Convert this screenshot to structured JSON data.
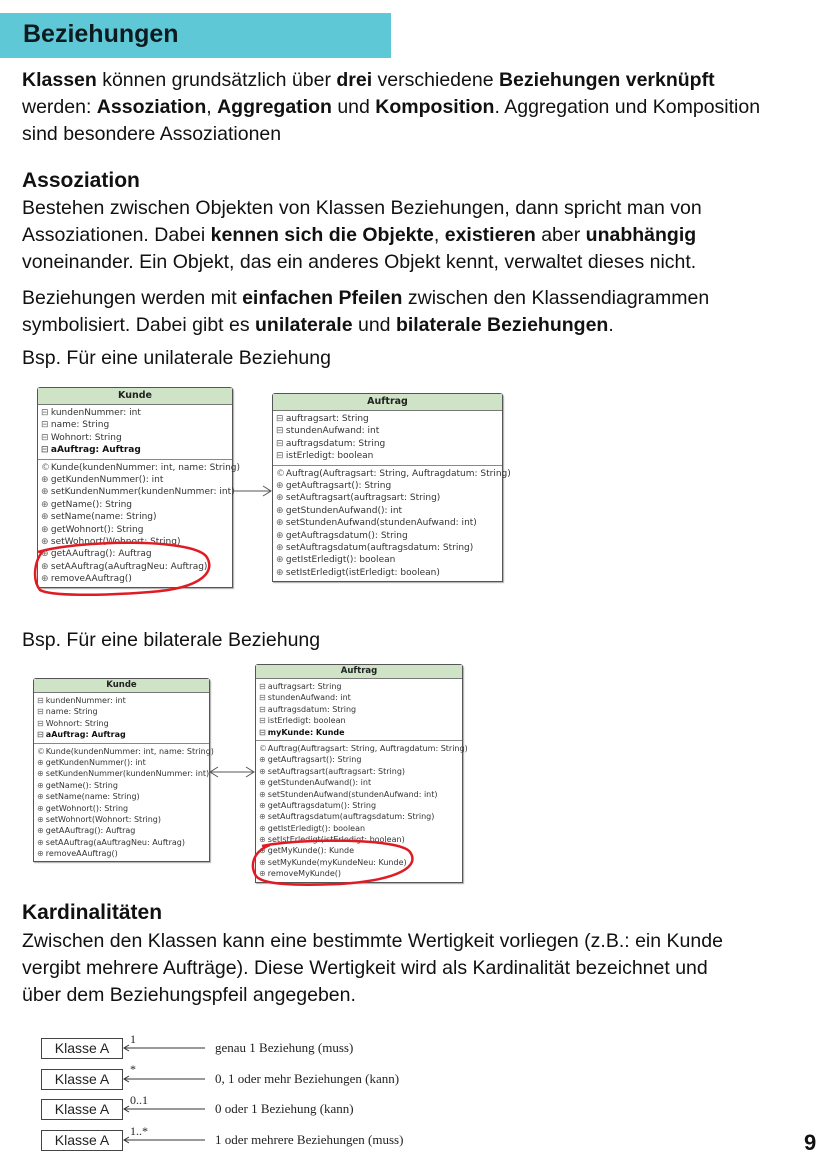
{
  "title": "Beziehungen",
  "intro": [
    [
      {
        "t": "Klassen",
        "b": true
      },
      {
        "t": " können grundsätzlich über "
      },
      {
        "t": "drei",
        "b": true
      },
      {
        "t": " verschiedene "
      },
      {
        "t": "Beziehungen verknüpft",
        "b": true
      }
    ],
    [
      {
        "t": "werden: "
      },
      {
        "t": "Assoziation",
        "b": true
      },
      {
        "t": ", "
      },
      {
        "t": "Aggregation",
        "b": true
      },
      {
        "t": " und "
      },
      {
        "t": "Komposition",
        "b": true
      },
      {
        "t": ". Aggregation und Komposition"
      }
    ],
    [
      {
        "t": "sind besondere Assoziationen"
      }
    ]
  ],
  "assoziation": {
    "heading": "Assoziation",
    "para1": [
      [
        {
          "t": "Bestehen zwischen Objekten von Klassen Beziehungen, dann spricht man von"
        }
      ],
      [
        {
          "t": "Assoziationen. Dabei "
        },
        {
          "t": "kennen sich die Objekte",
          "b": true
        },
        {
          "t": ", "
        },
        {
          "t": "existieren",
          "b": true
        },
        {
          "t": " aber "
        },
        {
          "t": "unabhängig",
          "b": true
        }
      ],
      [
        {
          "t": "voneinander. Ein Objekt, das ein anderes Objekt kennt, verwaltet dieses nicht."
        }
      ]
    ],
    "para2": [
      [
        {
          "t": "Beziehungen werden mit "
        },
        {
          "t": "einfachen Pfeilen",
          "b": true
        },
        {
          "t": " zwischen den Klassendiagrammen"
        }
      ],
      [
        {
          "t": "symbolisiert. Dabei gibt es "
        },
        {
          "t": "unilaterale",
          "b": true
        },
        {
          "t": " und "
        },
        {
          "t": "bilaterale Beziehungen",
          "b": true
        },
        {
          "t": "."
        }
      ]
    ],
    "example_uni": [
      [
        {
          "t": "Bsp. Für eine unilaterale Beziehung"
        }
      ]
    ],
    "example_bi": [
      [
        {
          "t": "Bsp. Für eine bilaterale Beziehung"
        }
      ]
    ]
  },
  "diagram_uni": {
    "highlight_color": "#e01b24",
    "classes": [
      {
        "name": "Kunde",
        "attrs": [
          {
            "t": "kundenNummer: int"
          },
          {
            "t": "name: String"
          },
          {
            "t": "Wohnort: String"
          },
          {
            "t": "aAuftrag: Auftrag",
            "b": true
          }
        ],
        "methods": [
          {
            "t": "Kunde(kundenNummer: int, name: String)",
            "c": true
          },
          {
            "t": "getKundenNummer(): int"
          },
          {
            "t": "setKundenNummer(kundenNummer: int)"
          },
          {
            "t": "getName(): String"
          },
          {
            "t": "setName(name: String)"
          },
          {
            "t": "getWohnort(): String"
          },
          {
            "t": "setWohnort(Wohnort: String)"
          },
          {
            "t": "getAAuftrag(): Auftrag"
          },
          {
            "t": "setAAuftrag(aAuftragNeu: Auftrag)"
          },
          {
            "t": "removeAAuftrag()"
          }
        ]
      },
      {
        "name": "Auftrag",
        "attrs": [
          {
            "t": "auftragsart: String"
          },
          {
            "t": "stundenAufwand: int"
          },
          {
            "t": "auftragsdatum: String"
          },
          {
            "t": "istErledigt: boolean"
          }
        ],
        "methods": [
          {
            "t": "Auftrag(Auftragsart: String, Auftragdatum: String)",
            "c": true
          },
          {
            "t": "getAuftragsart(): String"
          },
          {
            "t": "setAuftragsart(auftragsart: String)"
          },
          {
            "t": "getStundenAufwand(): int"
          },
          {
            "t": "setStundenAufwand(stundenAufwand: int)"
          },
          {
            "t": "getAuftragsdatum(): String"
          },
          {
            "t": "setAuftragsdatum(auftragsdatum: String)"
          },
          {
            "t": "getIstErledigt(): boolean"
          },
          {
            "t": "setIstErledigt(istErledigt: boolean)"
          }
        ]
      }
    ]
  },
  "diagram_bi": {
    "classes": [
      {
        "name": "Kunde",
        "attrs": [
          {
            "t": "kundenNummer: int"
          },
          {
            "t": "name: String"
          },
          {
            "t": "Wohnort: String"
          },
          {
            "t": "aAuftrag: Auftrag",
            "b": true
          }
        ],
        "methods": [
          {
            "t": "Kunde(kundenNummer: int, name: String)",
            "c": true
          },
          {
            "t": "getKundenNummer(): int"
          },
          {
            "t": "setKundenNummer(kundenNummer: int)"
          },
          {
            "t": "getName(): String"
          },
          {
            "t": "setName(name: String)"
          },
          {
            "t": "getWohnort(): String"
          },
          {
            "t": "setWohnort(Wohnort: String)"
          },
          {
            "t": "getAAuftrag(): Auftrag"
          },
          {
            "t": "setAAuftrag(aAuftragNeu: Auftrag)"
          },
          {
            "t": "removeAAuftrag()"
          }
        ]
      },
      {
        "name": "Auftrag",
        "attrs": [
          {
            "t": "auftragsart: String"
          },
          {
            "t": "stundenAufwand: int"
          },
          {
            "t": "auftragsdatum: String"
          },
          {
            "t": "istErledigt: boolean"
          },
          {
            "t": "myKunde: Kunde",
            "b": true
          }
        ],
        "methods": [
          {
            "t": "Auftrag(Auftragsart: String, Auftragdatum: String)",
            "c": true
          },
          {
            "t": "getAuftragsart(): String"
          },
          {
            "t": "setAuftragsart(auftragsart: String)"
          },
          {
            "t": "getStundenAufwand(): int"
          },
          {
            "t": "setStundenAufwand(stundenAufwand: int)"
          },
          {
            "t": "getAuftragsdatum(): String"
          },
          {
            "t": "setAuftragsdatum(auftragsdatum: String)"
          },
          {
            "t": "getIstErledigt(): boolean"
          },
          {
            "t": "setIstErledigt(istErledigt: boolean)"
          },
          {
            "t": "getMyKunde(): Kunde"
          },
          {
            "t": "setMyKunde(myKundeNeu: Kunde)"
          },
          {
            "t": "removeMyKunde()"
          }
        ]
      }
    ]
  },
  "kardinalitaeten": {
    "heading": "Kardinalitäten",
    "para": [
      [
        {
          "t": "Zwischen den Klassen kann eine bestimmte Wertigkeit vorliegen (z.B.: ein Kunde"
        }
      ],
      [
        {
          "t": "vergibt mehrere Aufträge). Diese Wertigkeit wird als Kardinalität bezeichnet und"
        }
      ],
      [
        {
          "t": "über dem Beziehungspfeil angegeben."
        }
      ]
    ],
    "rows": [
      {
        "class": "Klasse A",
        "mult": "1",
        "label": "genau 1 Beziehung (muss)"
      },
      {
        "class": "Klasse A",
        "mult": "*",
        "label": "0, 1 oder mehr Beziehungen (kann)"
      },
      {
        "class": "Klasse A",
        "mult": "0..1",
        "label": "0 oder 1 Beziehung (kann)"
      },
      {
        "class": "Klasse A",
        "mult": "1..*",
        "label": "1 oder mehrere Beziehungen (muss)"
      }
    ]
  },
  "page_number": "9"
}
